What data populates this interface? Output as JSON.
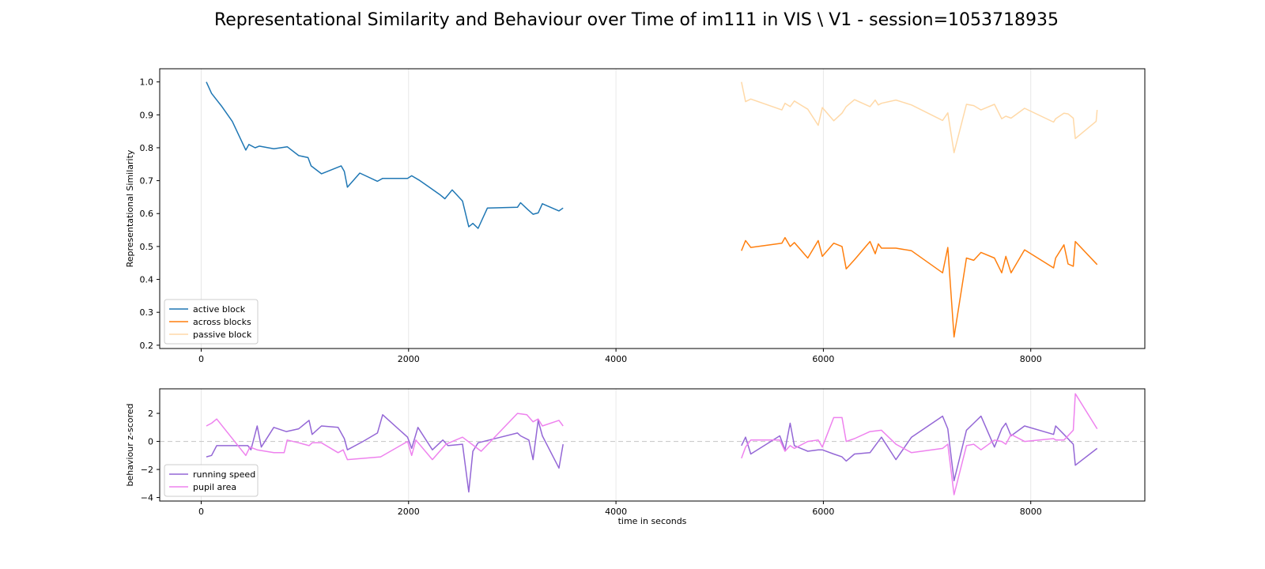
{
  "chart_data": [
    {
      "type": "line",
      "title": "Representational Similarity and Behaviour over Time of im111 in VIS \\ V1 - session=1053718935",
      "ylabel": "Representational Similarity",
      "xlabel": "",
      "xlim": [
        -400,
        9100
      ],
      "ylim": [
        0.19,
        1.04
      ],
      "xticks": [
        0,
        2000,
        4000,
        6000,
        8000
      ],
      "yticks": [
        0.2,
        0.3,
        0.4,
        0.5,
        0.6,
        0.7,
        0.8,
        0.9,
        1.0
      ],
      "ytick_labels": [
        "0.2",
        "0.3",
        "0.4",
        "0.5",
        "0.6",
        "0.7",
        "0.8",
        "0.9",
        "1.0"
      ],
      "grid": "vertical",
      "legend_position": "lower-left",
      "series": [
        {
          "name": "active block",
          "color": "#1f77b4",
          "x": [
            50,
            100,
            200,
            300,
            430,
            460,
            520,
            560,
            700,
            830,
            940,
            1030,
            1060,
            1160,
            1350,
            1380,
            1410,
            1530,
            1700,
            1750,
            1900,
            1990,
            2030,
            2100,
            2200,
            2300,
            2350,
            2420,
            2520,
            2580,
            2620,
            2670,
            2760,
            3050,
            3080,
            3150,
            3200,
            3250,
            3290,
            3450,
            3490
          ],
          "y": [
            1.0,
            0.965,
            0.925,
            0.88,
            0.793,
            0.81,
            0.8,
            0.805,
            0.797,
            0.803,
            0.776,
            0.77,
            0.745,
            0.721,
            0.745,
            0.728,
            0.68,
            0.723,
            0.698,
            0.707,
            0.707,
            0.707,
            0.715,
            0.702,
            0.68,
            0.658,
            0.645,
            0.672,
            0.638,
            0.56,
            0.57,
            0.555,
            0.617,
            0.619,
            0.633,
            0.612,
            0.598,
            0.602,
            0.63,
            0.608,
            0.617
          ]
        },
        {
          "name": "across blocks",
          "color": "#ff7f0e",
          "x": [
            5210,
            5250,
            5300,
            5600,
            5630,
            5680,
            5720,
            5850,
            5950,
            5990,
            6100,
            6180,
            6220,
            6300,
            6450,
            6500,
            6530,
            6560,
            6700,
            6850,
            7150,
            7200,
            7260,
            7380,
            7450,
            7520,
            7650,
            7720,
            7760,
            7810,
            7940,
            8220,
            8240,
            8320,
            8360,
            8410,
            8430,
            8640
          ],
          "y": [
            0.487,
            0.518,
            0.497,
            0.51,
            0.527,
            0.5,
            0.512,
            0.465,
            0.518,
            0.47,
            0.51,
            0.5,
            0.432,
            0.46,
            0.515,
            0.478,
            0.508,
            0.495,
            0.495,
            0.487,
            0.42,
            0.497,
            0.225,
            0.465,
            0.458,
            0.482,
            0.465,
            0.42,
            0.47,
            0.42,
            0.49,
            0.435,
            0.465,
            0.505,
            0.447,
            0.44,
            0.515,
            0.445
          ]
        },
        {
          "name": "passive block",
          "color": "#ffd9a8",
          "x": [
            5210,
            5250,
            5300,
            5600,
            5630,
            5680,
            5720,
            5850,
            5950,
            5990,
            6100,
            6180,
            6220,
            6300,
            6450,
            6500,
            6530,
            6560,
            6700,
            6850,
            7150,
            7200,
            7260,
            7380,
            7450,
            7520,
            7650,
            7720,
            7760,
            7810,
            7940,
            8220,
            8240,
            8320,
            8360,
            8410,
            8430,
            8630,
            8640
          ],
          "y": [
            1.0,
            0.94,
            0.948,
            0.915,
            0.935,
            0.925,
            0.942,
            0.917,
            0.868,
            0.922,
            0.882,
            0.905,
            0.925,
            0.946,
            0.925,
            0.945,
            0.93,
            0.935,
            0.945,
            0.93,
            0.883,
            0.906,
            0.785,
            0.932,
            0.928,
            0.915,
            0.932,
            0.888,
            0.896,
            0.89,
            0.92,
            0.878,
            0.888,
            0.905,
            0.903,
            0.89,
            0.828,
            0.88,
            0.915
          ]
        }
      ]
    },
    {
      "type": "line",
      "title": "",
      "ylabel": "behaviour z-scored",
      "xlabel": "time in seconds",
      "xlim": [
        -400,
        9100
      ],
      "ylim": [
        -4.25,
        3.75
      ],
      "xticks": [
        0,
        2000,
        4000,
        6000,
        8000
      ],
      "yticks": [
        -4,
        -2,
        0,
        2
      ],
      "ytick_labels": [
        "−4",
        "−2",
        "0",
        "2"
      ],
      "reference_line_y": 0,
      "grid": "vertical",
      "legend_position": "lower-left",
      "series": [
        {
          "name": "running speed",
          "color": "#9467d6",
          "x": [
            50,
            100,
            150,
            450,
            480,
            540,
            580,
            700,
            820,
            940,
            1040,
            1070,
            1160,
            1320,
            1380,
            1410,
            1560,
            1700,
            1750,
            1990,
            2030,
            2090,
            2230,
            2330,
            2380,
            2520,
            2580,
            2620,
            2670,
            3050,
            3080,
            3160,
            3200,
            3250,
            3290,
            3450,
            3490
          ],
          "y": [
            -1.1,
            -1.0,
            -0.3,
            -0.3,
            -0.6,
            1.1,
            -0.4,
            1.0,
            0.7,
            0.9,
            1.5,
            0.5,
            1.1,
            1.0,
            0.2,
            -0.6,
            0.0,
            0.6,
            1.9,
            0.3,
            -0.5,
            1.0,
            -0.6,
            0.1,
            -0.3,
            -0.2,
            -3.6,
            -0.7,
            -0.1,
            0.6,
            0.4,
            0.1,
            -1.3,
            1.5,
            0.4,
            -1.9,
            -0.2
          ]
        },
        {
          "name": "pupil area",
          "color": "#ee82ee",
          "x": [
            50,
            100,
            150,
            430,
            470,
            540,
            700,
            800,
            830,
            940,
            1040,
            1070,
            1160,
            1320,
            1370,
            1410,
            1730,
            1990,
            2030,
            2070,
            2230,
            2360,
            2520,
            2700,
            3050,
            3140,
            3200,
            3250,
            3290,
            3450,
            3490
          ],
          "y": [
            1.1,
            1.3,
            1.6,
            -1.0,
            -0.4,
            -0.6,
            -0.8,
            -0.8,
            0.1,
            -0.1,
            -0.3,
            -0.1,
            -0.1,
            -0.8,
            -0.6,
            -1.3,
            -1.1,
            0.0,
            -1.0,
            0.1,
            -1.3,
            -0.2,
            0.3,
            -0.7,
            2.0,
            1.9,
            1.4,
            1.6,
            1.1,
            1.5,
            1.1
          ]
        },
        {
          "name": "running speed",
          "color": "#9467d6",
          "x": [
            5210,
            5250,
            5300,
            5580,
            5630,
            5680,
            5720,
            5850,
            5950,
            5990,
            6100,
            6180,
            6220,
            6300,
            6450,
            6560,
            6700,
            6850,
            7150,
            7200,
            7260,
            7380,
            7450,
            7520,
            7650,
            7720,
            7760,
            7810,
            7940,
            8220,
            8240,
            8320,
            8410,
            8430,
            8640
          ],
          "y": [
            -0.3,
            0.3,
            -0.9,
            0.4,
            -0.6,
            1.3,
            -0.3,
            -0.7,
            -0.6,
            -0.6,
            -0.9,
            -1.1,
            -1.4,
            -0.9,
            -0.8,
            0.3,
            -1.3,
            0.3,
            1.8,
            0.9,
            -2.8,
            0.8,
            1.3,
            1.8,
            -0.4,
            0.9,
            1.3,
            0.4,
            1.1,
            0.5,
            1.1,
            0.5,
            -0.2,
            -1.7,
            -0.5
          ]
        },
        {
          "name": "pupil area",
          "color": "#ee82ee",
          "x": [
            5210,
            5250,
            5300,
            5580,
            5630,
            5680,
            5720,
            5850,
            5950,
            5990,
            6100,
            6180,
            6220,
            6300,
            6450,
            6560,
            6700,
            6850,
            7150,
            7200,
            7260,
            7380,
            7450,
            7520,
            7650,
            7720,
            7760,
            7810,
            7940,
            8220,
            8240,
            8320,
            8410,
            8430,
            8640
          ],
          "y": [
            -1.2,
            -0.4,
            0.1,
            0.1,
            -0.7,
            -0.3,
            -0.5,
            0.0,
            0.1,
            -0.4,
            1.7,
            1.7,
            0.0,
            0.2,
            0.7,
            0.8,
            -0.2,
            -0.8,
            -0.5,
            -0.2,
            -3.8,
            -0.3,
            -0.2,
            -0.6,
            0.1,
            0.0,
            -0.2,
            0.5,
            0.0,
            0.2,
            0.1,
            0.1,
            0.8,
            3.4,
            0.9
          ]
        }
      ]
    }
  ]
}
